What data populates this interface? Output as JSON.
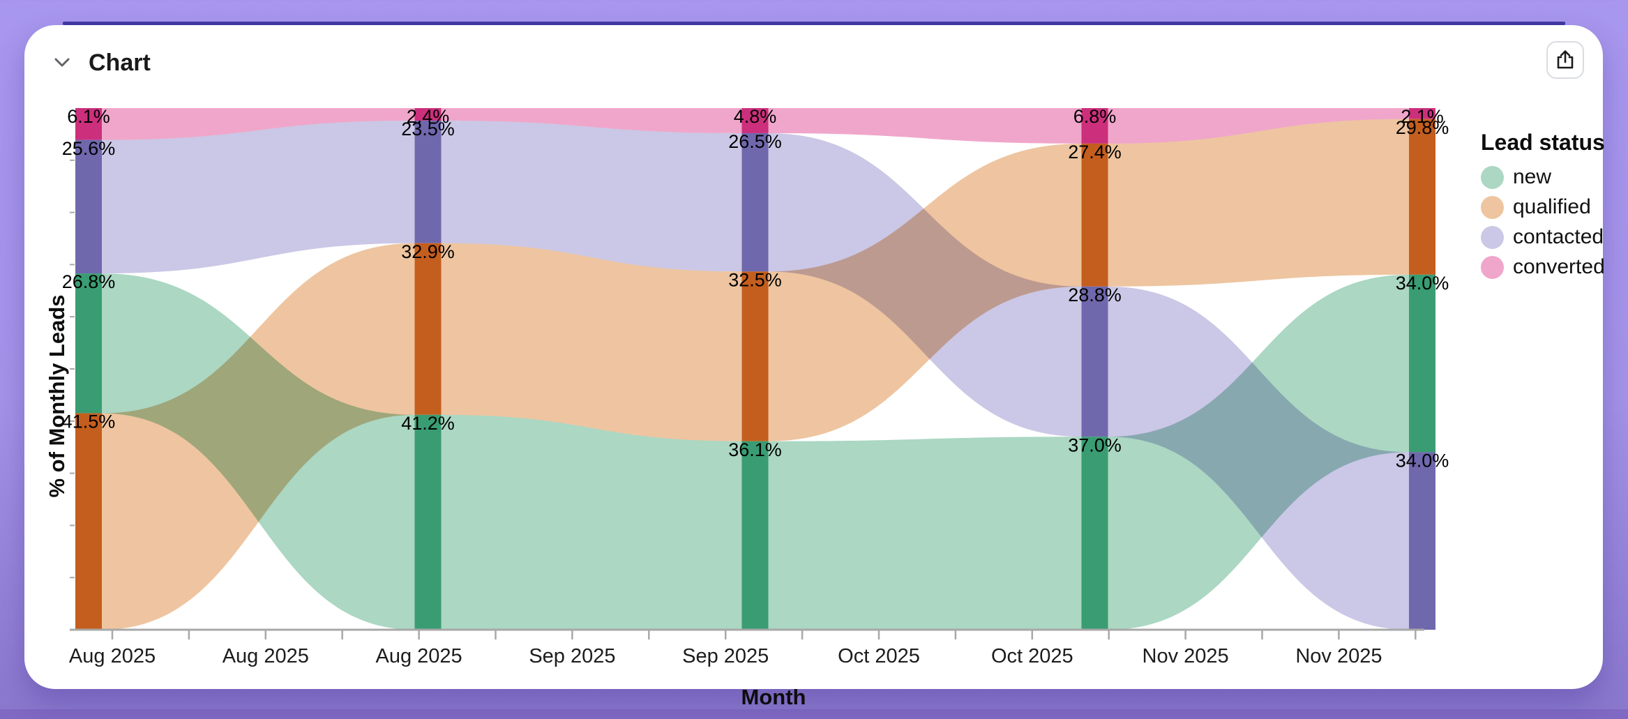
{
  "header": {
    "title": "Chart"
  },
  "colors": {
    "page_background": "#a897ee",
    "page_background_bottom": "#8977cc",
    "top_accent_bar": "#4238a2",
    "card_background": "#ffffff",
    "axis": "#a8a8a8",
    "tick_text": "#1c1c1c",
    "label_text": "#000000"
  },
  "chart_data": {
    "type": "alluvial",
    "title": "Chart",
    "xlabel": "Month",
    "ylabel": "% of Monthly Leads",
    "ylim": [
      0,
      100
    ],
    "grid": false,
    "legend_title": "Lead status",
    "legend_position": "right",
    "statuses": [
      {
        "name": "new",
        "node_color": "#3a9c72",
        "flow_color": "#abd7c3"
      },
      {
        "name": "qualified",
        "node_color": "#c45e1e",
        "flow_color": "#eec5a0"
      },
      {
        "name": "contacted",
        "node_color": "#6f68ad",
        "flow_color": "#cbc7e6"
      },
      {
        "name": "converted",
        "node_color": "#cc2f7c",
        "flow_color": "#f0a6ca"
      }
    ],
    "columns": [
      {
        "stack": [
          [
            "converted",
            6.1
          ],
          [
            "contacted",
            25.6
          ],
          [
            "new",
            26.8
          ],
          [
            "qualified",
            41.5
          ]
        ]
      },
      {
        "stack": [
          [
            "converted",
            2.4
          ],
          [
            "contacted",
            23.5
          ],
          [
            "qualified",
            32.9
          ],
          [
            "new",
            41.2
          ]
        ]
      },
      {
        "stack": [
          [
            "converted",
            4.8
          ],
          [
            "contacted",
            26.5
          ],
          [
            "qualified",
            32.5
          ],
          [
            "new",
            36.1
          ]
        ]
      },
      {
        "stack": [
          [
            "converted",
            6.8
          ],
          [
            "qualified",
            27.4
          ],
          [
            "contacted",
            28.8
          ],
          [
            "new",
            37.0
          ]
        ]
      },
      {
        "stack": [
          [
            "converted",
            2.1
          ],
          [
            "qualified",
            29.8
          ],
          [
            "new",
            34.0
          ],
          [
            "contacted",
            34.0
          ]
        ]
      }
    ],
    "x_tick_labels": [
      "Aug 2025",
      "Aug 2025",
      "Aug 2025",
      "Sep 2025",
      "Sep 2025",
      "Oct 2025",
      "Oct 2025",
      "Nov 2025",
      "Nov 2025"
    ]
  }
}
